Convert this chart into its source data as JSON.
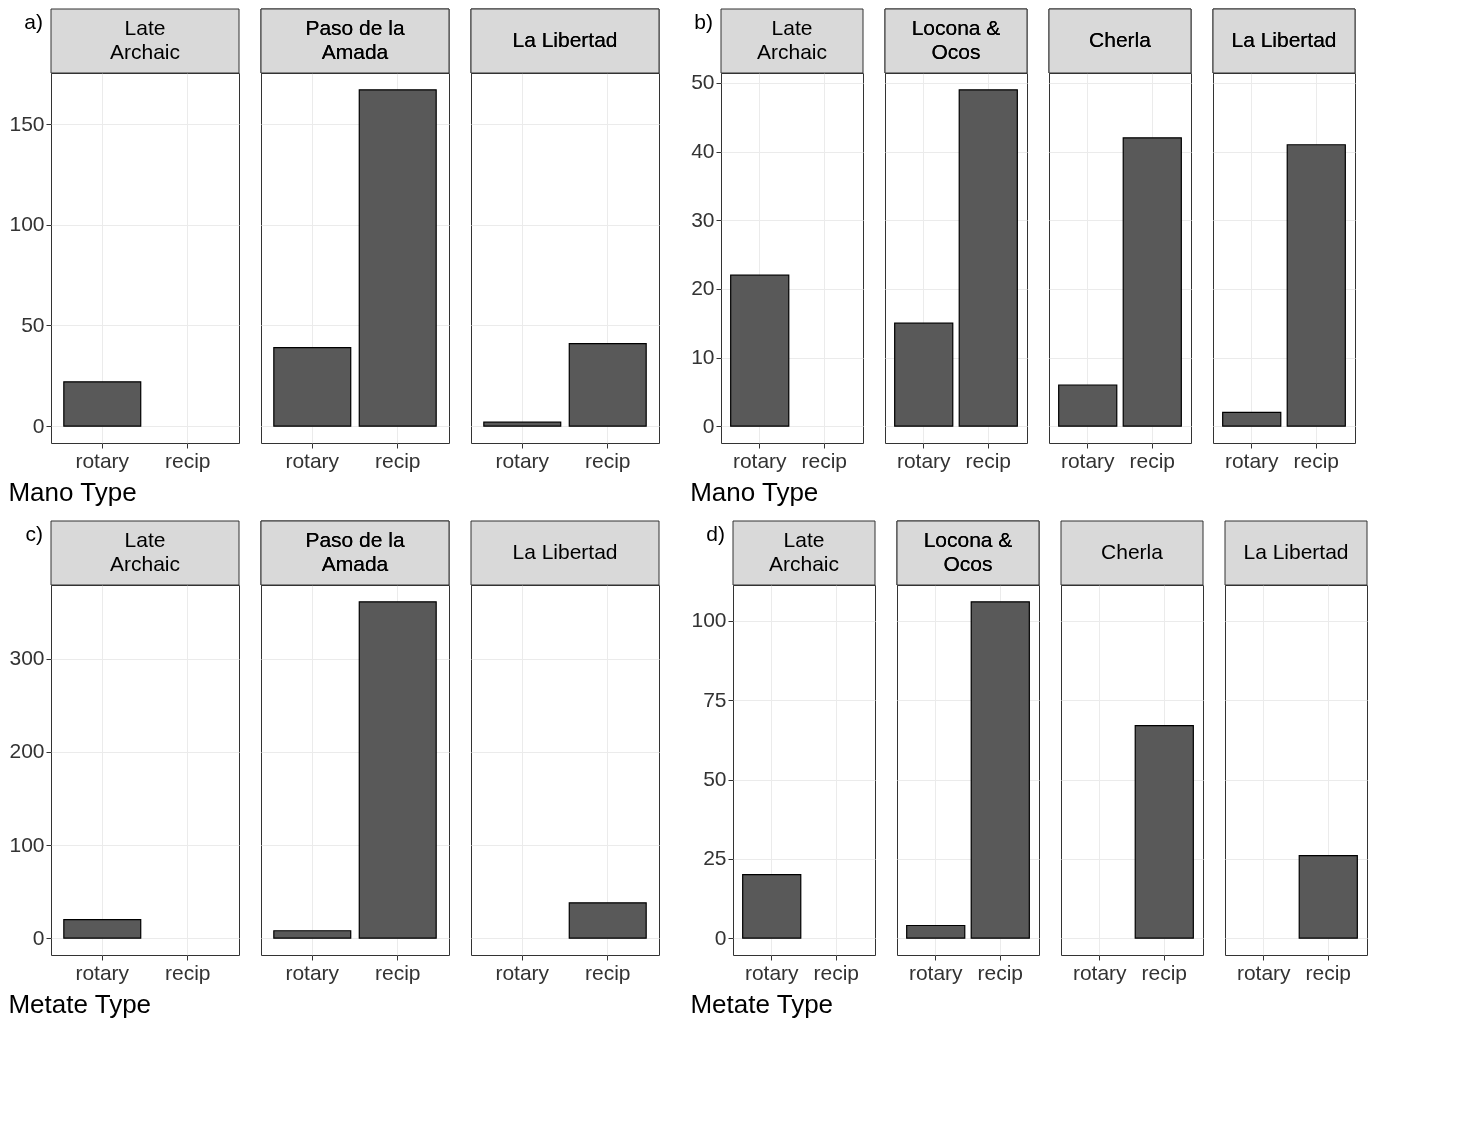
{
  "chart_data": [
    {
      "type": "bar",
      "title": "Late Archaic",
      "xlabel": "Mano Type",
      "annotations": [
        "a)"
      ],
      "categories": [
        "rotary",
        "recip"
      ],
      "values": [
        22,
        null
      ],
      "color": "#595959",
      "ylim": [
        -8.35,
        175.35
      ],
      "yticks": [
        0,
        50,
        100,
        150
      ],
      "grid": true
    },
    {
      "type": "bar",
      "title": "Paso de la Amada",
      "categories": [
        "rotary",
        "recip"
      ],
      "values": [
        39,
        167
      ],
      "color": "#595959",
      "ylim": [
        -8.35,
        175.35
      ],
      "yticks": [
        0,
        50,
        100,
        150
      ],
      "grid": true,
      "tick_labels": "x"
    },
    {
      "type": "bar",
      "title": "La Libertad",
      "categories": [
        "rotary",
        "recip"
      ],
      "values": [
        2,
        41
      ],
      "color": "#595959",
      "ylim": [
        -8.35,
        175.35
      ],
      "yticks": [
        0,
        50,
        100,
        150
      ],
      "grid": true,
      "tick_labels": "x"
    },
    {
      "type": "bar",
      "title": "Late Archaic",
      "xlabel": "Mano Type",
      "annotations": [
        "b)"
      ],
      "categories": [
        "rotary",
        "recip"
      ],
      "values": [
        22,
        null
      ],
      "color": "#595959",
      "ylim": [
        -2.45,
        51.45
      ],
      "yticks": [
        0,
        10,
        20,
        30,
        40,
        50
      ],
      "grid": true
    },
    {
      "type": "bar",
      "title": "Locona & Ocos",
      "categories": [
        "rotary",
        "recip"
      ],
      "values": [
        15,
        49
      ],
      "color": "#595959",
      "ylim": [
        -2.45,
        51.45
      ],
      "yticks": [
        0,
        10,
        20,
        30,
        40,
        50
      ],
      "grid": true,
      "tick_labels": "x"
    },
    {
      "type": "bar",
      "title": "Cherla",
      "categories": [
        "rotary",
        "recip"
      ],
      "values": [
        6,
        42
      ],
      "color": "#595959",
      "ylim": [
        -2.45,
        51.45
      ],
      "yticks": [
        0,
        10,
        20,
        30,
        40,
        50
      ],
      "grid": true,
      "tick_labels": "x"
    },
    {
      "type": "bar",
      "title": "La Libertad",
      "categories": [
        "rotary",
        "recip"
      ],
      "values": [
        2,
        41
      ],
      "color": "#595959",
      "ylim": [
        -2.45,
        51.45
      ],
      "yticks": [
        0,
        10,
        20,
        30,
        40,
        50
      ],
      "grid": true,
      "tick_labels": "x"
    },
    {
      "type": "bar",
      "title": "Late Archaic",
      "xlabel": "Metate Type",
      "annotations": [
        "c)"
      ],
      "categories": [
        "rotary",
        "recip"
      ],
      "values": [
        20,
        null
      ],
      "color": "#595959",
      "ylim": [
        -18.05,
        379.05
      ],
      "yticks": [
        0,
        100,
        200,
        300
      ],
      "grid": true
    },
    {
      "type": "bar",
      "title": "Paso de la Amada",
      "categories": [
        "rotary",
        "recip"
      ],
      "values": [
        8,
        361
      ],
      "color": "#595959",
      "ylim": [
        -18.05,
        379.05
      ],
      "yticks": [
        0,
        100,
        200,
        300
      ],
      "grid": true,
      "tick_labels": "x"
    },
    {
      "type": "bar",
      "title": "La Libertad",
      "categories": [
        "rotary",
        "recip"
      ],
      "values": [
        null,
        38
      ],
      "color": "#595959",
      "ylim": [
        -18.05,
        379.05
      ],
      "yticks": [
        0,
        100,
        200,
        300
      ],
      "grid": true,
      "tick_labels": "x"
    },
    {
      "type": "bar",
      "title": "Late Archaic",
      "xlabel": "Metate Type",
      "annotations": [
        "d)"
      ],
      "categories": [
        "rotary",
        "recip"
      ],
      "values": [
        20,
        null
      ],
      "color": "#595959",
      "ylim": [
        -5.3,
        111.3
      ],
      "yticks": [
        0,
        25,
        50,
        75,
        100
      ],
      "grid": true
    },
    {
      "type": "bar",
      "title": "Locona & Ocos",
      "categories": [
        "rotary",
        "recip"
      ],
      "values": [
        4,
        106
      ],
      "color": "#595959",
      "ylim": [
        -5.3,
        111.3
      ],
      "yticks": [
        0,
        25,
        50,
        75,
        100
      ],
      "grid": true,
      "tick_labels": "x"
    },
    {
      "type": "bar",
      "title": "Cherla",
      "categories": [
        "rotary",
        "recip"
      ],
      "values": [
        null,
        67
      ],
      "color": "#595959",
      "ylim": [
        -5.3,
        111.3
      ],
      "yticks": [
        0,
        25,
        50,
        75,
        100
      ],
      "grid": true,
      "tick_labels": "x"
    },
    {
      "type": "bar",
      "title": "La Libertad",
      "categories": [
        "rotary",
        "recip"
      ],
      "values": [
        null,
        26
      ],
      "color": "#595959",
      "ylim": [
        -5.3,
        111.3
      ],
      "yticks": [
        0,
        25,
        50,
        75,
        100
      ],
      "grid": true,
      "tick_labels": "x"
    }
  ]
}
